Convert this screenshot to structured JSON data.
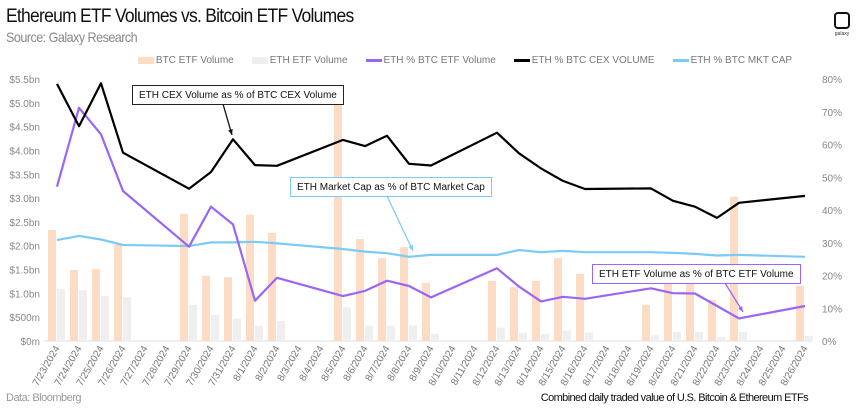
{
  "header": {
    "title": "Ethereum ETF Volumes vs. Bitcoin ETF Volumes",
    "subtitle": "Source: Galaxy Research",
    "logo_text": "galaxy"
  },
  "footer": {
    "left": "Data: Bloomberg",
    "right": "Combined daily traded value of U.S. Bitcoin & Ethereum ETFs"
  },
  "annotations": {
    "cex": "ETH CEX Volume as % of BTC CEX Volume",
    "mktcap": "ETH Market Cap as % of BTC Market Cap",
    "etf": "ETH ETF Volume as % of BTC ETF Volume"
  },
  "colors": {
    "btc_etf": "#fddcc6",
    "eth_etf": "#efefef",
    "eth_pct_etf": "#9966f5",
    "eth_pct_cex": "#000000",
    "eth_pct_mktcap": "#7ccbf7"
  },
  "chart_data": {
    "type": "bar+line",
    "legend_position": "top",
    "grid": false,
    "categories": [
      "7/23/2024",
      "7/24/2024",
      "7/25/2024",
      "7/26/2024",
      "7/27/2024",
      "7/28/2024",
      "7/29/2024",
      "7/30/2024",
      "7/31/2024",
      "8/1/2024",
      "8/2/2024",
      "8/3/2024",
      "8/4/2024",
      "8/5/2024",
      "8/6/2024",
      "8/7/2024",
      "8/8/2024",
      "8/9/2024",
      "8/10/2024",
      "8/11/2024",
      "8/12/2024",
      "8/13/2024",
      "8/14/2024",
      "8/15/2024",
      "8/16/2024",
      "8/17/2024",
      "8/18/2024",
      "8/19/2024",
      "8/20/2024",
      "8/21/2024",
      "8/22/2024",
      "8/23/2024",
      "8/24/2024",
      "8/25/2024",
      "8/26/2024"
    ],
    "left_axis": {
      "ylim": [
        0,
        5.5
      ],
      "unit": "bn USD",
      "tick_labels": [
        "$0m",
        "$500m",
        "$1.0bn",
        "$1.5bn",
        "$2.0bn",
        "$2.5bn",
        "$3.0bn",
        "$3.5bn",
        "$4.0bn",
        "$4.5bn",
        "$5.0bn",
        "$5.5bn"
      ]
    },
    "right_axis": {
      "ylim": [
        0,
        80
      ],
      "unit": "%",
      "tick_labels": [
        "0%",
        "10%",
        "20%",
        "30%",
        "40%",
        "50%",
        "60%",
        "70%",
        "80%"
      ]
    },
    "series": [
      {
        "name": "BTC ETF Volume",
        "type": "bar",
        "axis": "left",
        "values": [
          2.33,
          1.49,
          1.51,
          2.02,
          null,
          null,
          2.67,
          1.37,
          1.34,
          2.65,
          2.27,
          null,
          null,
          5.15,
          2.14,
          1.74,
          1.97,
          1.22,
          null,
          null,
          1.26,
          1.13,
          1.26,
          1.74,
          1.41,
          null,
          null,
          0.76,
          1.25,
          1.25,
          0.86,
          3.03,
          null,
          null,
          1.16
        ]
      },
      {
        "name": "ETH ETF Volume",
        "type": "bar",
        "axis": "left",
        "values": [
          1.09,
          1.07,
          0.95,
          0.92,
          null,
          null,
          0.76,
          0.55,
          0.47,
          0.32,
          0.42,
          null,
          null,
          0.71,
          0.32,
          0.32,
          0.33,
          0.15,
          null,
          null,
          0.28,
          0.17,
          0.15,
          0.22,
          0.18,
          null,
          null,
          0.12,
          0.19,
          0.19,
          0.09,
          0.19,
          null,
          null,
          0.11
        ]
      },
      {
        "name": "ETH % BTC ETF Volume",
        "type": "line",
        "axis": "right",
        "values": [
          47.1,
          71.2,
          63.1,
          45.8,
          null,
          null,
          28.8,
          41.0,
          35.6,
          12.3,
          19.3,
          null,
          null,
          13.7,
          15.3,
          18.4,
          16.8,
          13.3,
          null,
          null,
          22.2,
          16.6,
          12.1,
          13.5,
          12.9,
          null,
          null,
          16.1,
          14.6,
          14.5,
          10.7,
          6.9,
          null,
          null,
          10.7
        ]
      },
      {
        "name": "ETH % BTC CEX VOLUME",
        "type": "line",
        "axis": "right",
        "values": [
          78.5,
          65.6,
          78.7,
          57.5,
          null,
          null,
          46.5,
          51.6,
          61.6,
          53.7,
          53.5,
          null,
          null,
          61.4,
          59.5,
          62.7,
          54.1,
          53.6,
          null,
          null,
          63.6,
          57.3,
          52.7,
          48.9,
          46.4,
          null,
          null,
          46.6,
          42.8,
          41.0,
          37.6,
          42.2,
          null,
          null,
          44.3
        ]
      },
      {
        "name": "ETH % BTC MKT CAP",
        "type": "line",
        "axis": "right",
        "values": [
          30.8,
          32.1,
          31.0,
          29.3,
          null,
          null,
          29.0,
          30.1,
          30.1,
          30.3,
          29.8,
          null,
          null,
          28.1,
          27.3,
          26.8,
          25.7,
          26.3,
          null,
          null,
          26.3,
          27.8,
          27.1,
          27.5,
          27.1,
          null,
          null,
          27.1,
          26.9,
          26.6,
          26.1,
          26.3,
          null,
          null,
          25.7
        ]
      }
    ]
  }
}
